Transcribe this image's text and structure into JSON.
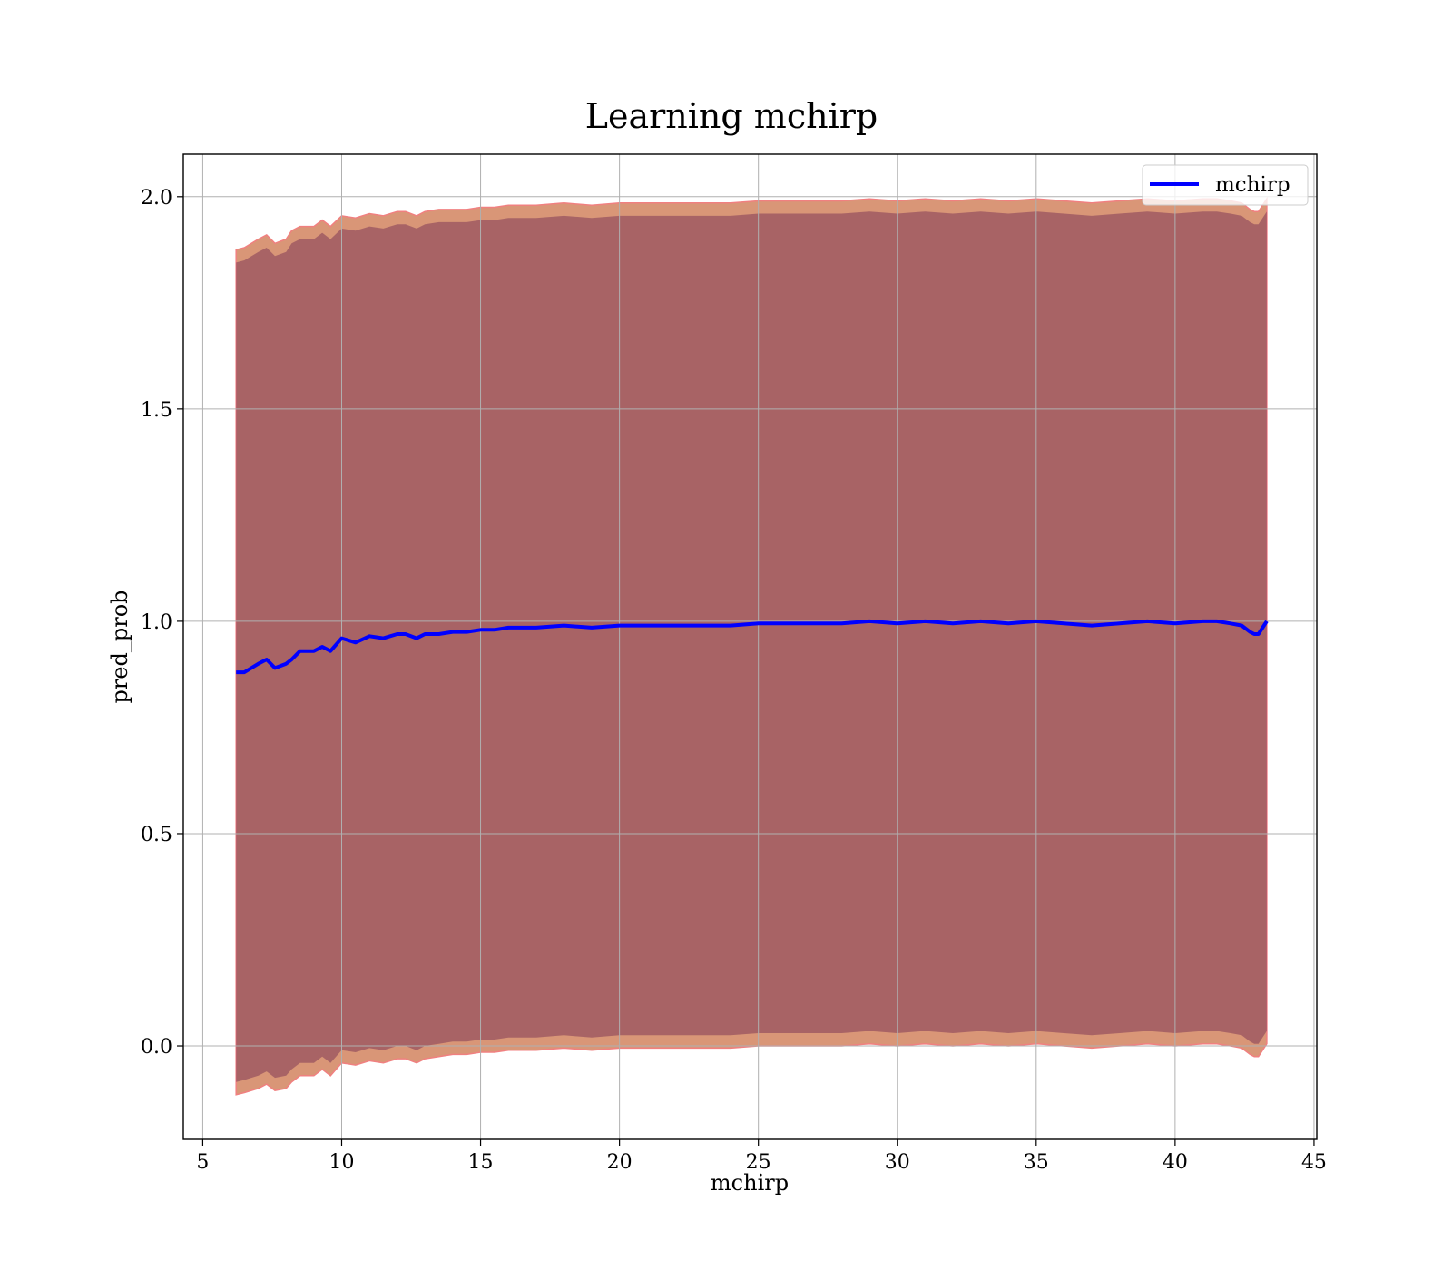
{
  "chart_data": {
    "type": "line",
    "title": "Learning mchirp",
    "xlabel": "mchirp",
    "ylabel": "pred_prob",
    "xlim": [
      4.3,
      45.1
    ],
    "ylim": [
      -0.22,
      2.1
    ],
    "x_ticks": [
      5,
      10,
      15,
      20,
      25,
      30,
      35,
      40,
      45
    ],
    "x_tick_labels": [
      "5",
      "10",
      "15",
      "20",
      "25",
      "30",
      "35",
      "40",
      "45"
    ],
    "y_ticks": [
      0.0,
      0.5,
      1.0,
      1.5,
      2.0
    ],
    "y_tick_labels": [
      "0.0",
      "0.5",
      "1.0",
      "1.5",
      "2.0"
    ],
    "grid": true,
    "legend": {
      "placement": "top-right",
      "entries": [
        "mchirp"
      ]
    },
    "series": [
      {
        "name": "mchirp",
        "kind": "line",
        "color": "#0000ff",
        "x": [
          6.2,
          6.5,
          7.0,
          7.3,
          7.6,
          8.0,
          8.2,
          8.5,
          9.0,
          9.3,
          9.6,
          10.0,
          10.5,
          11.0,
          11.5,
          12.0,
          12.3,
          12.7,
          13.0,
          13.5,
          14.0,
          14.5,
          15.0,
          15.5,
          16.0,
          17.0,
          18.0,
          19.0,
          20.0,
          21.0,
          22.0,
          23.0,
          24.0,
          25.0,
          26.0,
          27.0,
          28.0,
          29.0,
          30.0,
          31.0,
          32.0,
          33.0,
          34.0,
          35.0,
          36.0,
          37.0,
          38.0,
          39.0,
          40.0,
          41.0,
          41.5,
          42.0,
          42.4,
          42.7,
          42.85,
          43.0,
          43.3
        ],
        "y": [
          0.88,
          0.88,
          0.9,
          0.91,
          0.89,
          0.9,
          0.91,
          0.93,
          0.93,
          0.94,
          0.93,
          0.96,
          0.95,
          0.965,
          0.96,
          0.97,
          0.97,
          0.96,
          0.97,
          0.97,
          0.975,
          0.975,
          0.98,
          0.98,
          0.985,
          0.985,
          0.99,
          0.985,
          0.99,
          0.99,
          0.99,
          0.99,
          0.99,
          0.995,
          0.995,
          0.995,
          0.995,
          1.0,
          0.995,
          1.0,
          0.995,
          1.0,
          0.995,
          1.0,
          0.995,
          0.99,
          0.995,
          1.0,
          0.995,
          1.0,
          1.0,
          0.995,
          0.99,
          0.975,
          0.97,
          0.97,
          1.0
        ]
      },
      {
        "name": "",
        "kind": "band",
        "color": "#d2845f",
        "x": [
          6.2,
          6.5,
          7.0,
          7.3,
          7.6,
          8.0,
          8.2,
          8.5,
          9.0,
          9.3,
          9.6,
          10.0,
          10.5,
          11.0,
          11.5,
          12.0,
          12.3,
          12.7,
          13.0,
          13.5,
          14.0,
          14.5,
          15.0,
          15.5,
          16.0,
          17.0,
          18.0,
          19.0,
          20.0,
          21.0,
          22.0,
          23.0,
          24.0,
          25.0,
          26.0,
          27.0,
          28.0,
          29.0,
          30.0,
          31.0,
          32.0,
          33.0,
          34.0,
          35.0,
          36.0,
          37.0,
          38.0,
          39.0,
          40.0,
          41.0,
          41.5,
          42.0,
          42.4,
          42.7,
          42.85,
          43.0,
          43.3
        ],
        "upper": [
          1.875,
          1.88,
          1.9,
          1.91,
          1.89,
          1.9,
          1.92,
          1.93,
          1.93,
          1.945,
          1.93,
          1.955,
          1.95,
          1.96,
          1.955,
          1.965,
          1.965,
          1.955,
          1.965,
          1.97,
          1.97,
          1.97,
          1.975,
          1.975,
          1.98,
          1.98,
          1.985,
          1.98,
          1.985,
          1.985,
          1.985,
          1.985,
          1.985,
          1.99,
          1.99,
          1.99,
          1.99,
          1.995,
          1.99,
          1.995,
          1.99,
          1.995,
          1.99,
          1.995,
          1.99,
          1.985,
          1.99,
          1.995,
          1.99,
          1.995,
          1.995,
          1.99,
          1.985,
          1.97,
          1.965,
          1.965,
          1.995
        ],
        "lower": [
          -0.115,
          -0.11,
          -0.1,
          -0.09,
          -0.105,
          -0.1,
          -0.085,
          -0.07,
          -0.07,
          -0.055,
          -0.07,
          -0.04,
          -0.045,
          -0.035,
          -0.04,
          -0.03,
          -0.03,
          -0.04,
          -0.03,
          -0.025,
          -0.02,
          -0.02,
          -0.015,
          -0.015,
          -0.01,
          -0.01,
          -0.005,
          -0.01,
          -0.005,
          -0.005,
          -0.005,
          -0.005,
          -0.005,
          0.0,
          0.0,
          0.0,
          0.0,
          0.005,
          0.0,
          0.005,
          0.0,
          0.005,
          0.0,
          0.005,
          0.0,
          -0.005,
          0.0,
          0.005,
          0.0,
          0.005,
          0.005,
          0.0,
          -0.005,
          -0.02,
          -0.025,
          -0.025,
          0.005
        ]
      },
      {
        "name": "",
        "kind": "band",
        "color": "#7f3a58",
        "x": [
          6.2,
          6.5,
          7.0,
          7.3,
          7.6,
          8.0,
          8.2,
          8.5,
          9.0,
          9.3,
          9.6,
          10.0,
          10.5,
          11.0,
          11.5,
          12.0,
          12.3,
          12.7,
          13.0,
          13.5,
          14.0,
          14.5,
          15.0,
          15.5,
          16.0,
          17.0,
          18.0,
          19.0,
          20.0,
          21.0,
          22.0,
          23.0,
          24.0,
          25.0,
          26.0,
          27.0,
          28.0,
          29.0,
          30.0,
          31.0,
          32.0,
          33.0,
          34.0,
          35.0,
          36.0,
          37.0,
          38.0,
          39.0,
          40.0,
          41.0,
          41.5,
          42.0,
          42.4,
          42.7,
          42.85,
          43.0,
          43.3
        ],
        "upper": [
          1.845,
          1.85,
          1.87,
          1.88,
          1.86,
          1.87,
          1.89,
          1.9,
          1.9,
          1.915,
          1.9,
          1.925,
          1.92,
          1.93,
          1.925,
          1.935,
          1.935,
          1.925,
          1.935,
          1.94,
          1.94,
          1.94,
          1.945,
          1.945,
          1.95,
          1.95,
          1.955,
          1.95,
          1.955,
          1.955,
          1.955,
          1.955,
          1.955,
          1.96,
          1.96,
          1.96,
          1.96,
          1.965,
          1.96,
          1.965,
          1.96,
          1.965,
          1.96,
          1.965,
          1.96,
          1.955,
          1.96,
          1.965,
          1.96,
          1.965,
          1.965,
          1.96,
          1.955,
          1.94,
          1.935,
          1.935,
          1.965
        ],
        "lower": [
          -0.085,
          -0.08,
          -0.07,
          -0.06,
          -0.075,
          -0.07,
          -0.055,
          -0.04,
          -0.04,
          -0.025,
          -0.04,
          -0.01,
          -0.015,
          -0.005,
          -0.01,
          0.0,
          0.0,
          -0.01,
          0.0,
          0.005,
          0.01,
          0.01,
          0.015,
          0.015,
          0.02,
          0.02,
          0.025,
          0.02,
          0.025,
          0.025,
          0.025,
          0.025,
          0.025,
          0.03,
          0.03,
          0.03,
          0.03,
          0.035,
          0.03,
          0.035,
          0.03,
          0.035,
          0.03,
          0.035,
          0.03,
          0.025,
          0.03,
          0.035,
          0.03,
          0.035,
          0.035,
          0.03,
          0.025,
          0.01,
          0.005,
          0.005,
          0.035
        ]
      }
    ]
  }
}
